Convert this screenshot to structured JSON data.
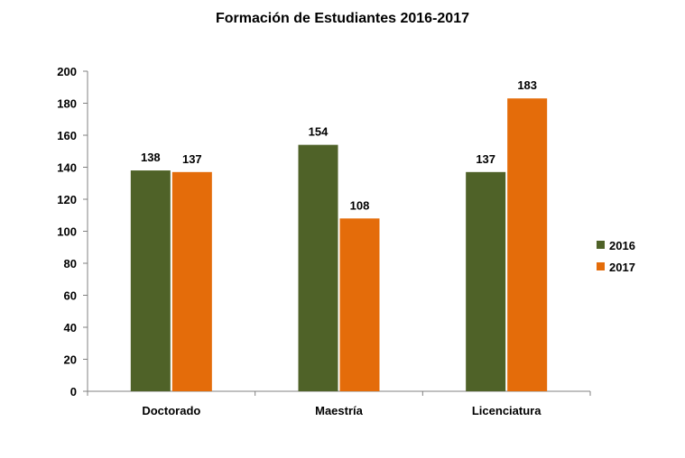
{
  "chart_data": {
    "type": "bar",
    "title": "Formación de Estudiantes 2016-2017",
    "xlabel": "",
    "ylabel": "",
    "categories": [
      "Doctorado",
      "Maestría",
      "Licenciatura"
    ],
    "series": [
      {
        "name": "2016",
        "values": [
          138,
          154,
          137
        ],
        "color": "#4f6228"
      },
      {
        "name": "2017",
        "values": [
          137,
          108,
          183
        ],
        "color": "#e46c0a"
      }
    ],
    "ylim": [
      0,
      200
    ],
    "yticks": [
      0,
      20,
      40,
      60,
      80,
      100,
      120,
      140,
      160,
      180,
      200
    ],
    "grid": false,
    "legend_position": "right",
    "data_labels": true
  }
}
